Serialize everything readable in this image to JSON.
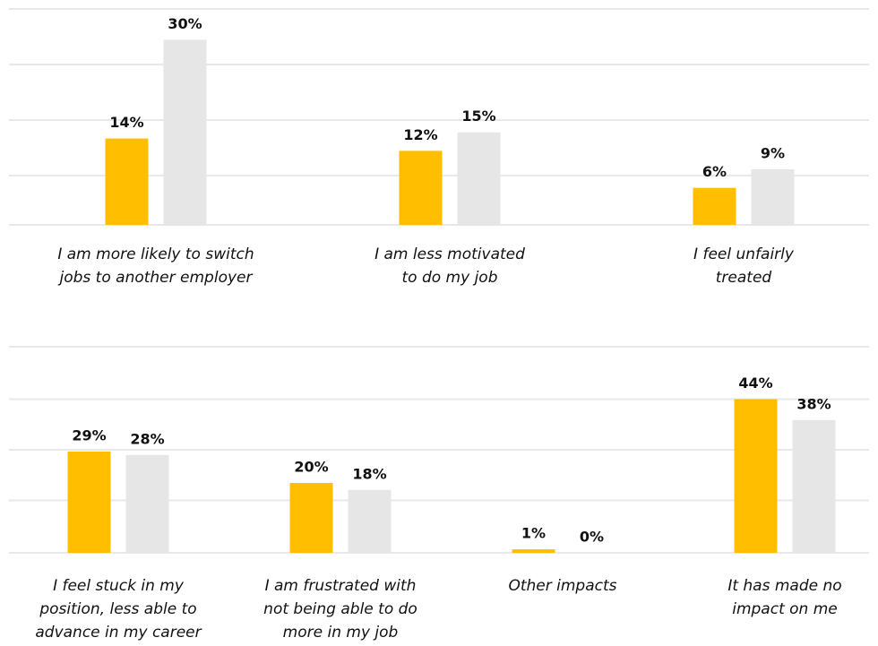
{
  "chart_data": [
    {
      "type": "bar",
      "categories": [
        [
          "I am more likely to switch",
          "jobs to another employer"
        ],
        [
          "I am less motivated",
          "to do my job"
        ],
        [
          "I feel unfairly",
          "treated"
        ]
      ],
      "series": [
        {
          "color": "#ffbf00",
          "values": [
            14,
            12,
            6
          ],
          "value_labels": [
            "14%",
            "12%",
            "6%"
          ]
        },
        {
          "color": "#e6e6e6",
          "values": [
            30,
            15,
            9
          ],
          "value_labels": [
            "30%",
            "15%",
            "9%"
          ]
        }
      ],
      "ylim": [
        0,
        35
      ],
      "yticks": [
        0,
        8,
        17,
        26,
        35
      ],
      "grid": true
    },
    {
      "type": "bar",
      "categories": [
        [
          "I feel stuck in my",
          "position, less able to",
          "advance in my career"
        ],
        [
          "I am frustrated with",
          "not being able to do",
          "more in my job"
        ],
        [
          "Other impacts"
        ],
        [
          "It has made no",
          "impact on me"
        ]
      ],
      "series": [
        {
          "color": "#ffbf00",
          "values": [
            29,
            20,
            1,
            44
          ],
          "value_labels": [
            "29%",
            "20%",
            "1%",
            "44%"
          ]
        },
        {
          "color": "#e6e6e6",
          "values": [
            28,
            18,
            0,
            38
          ],
          "value_labels": [
            "28%",
            "18%",
            "0%",
            "38%"
          ]
        }
      ],
      "ylim": [
        0,
        59
      ],
      "yticks": [
        0,
        15,
        29.5,
        44,
        59
      ],
      "grid": true
    }
  ]
}
